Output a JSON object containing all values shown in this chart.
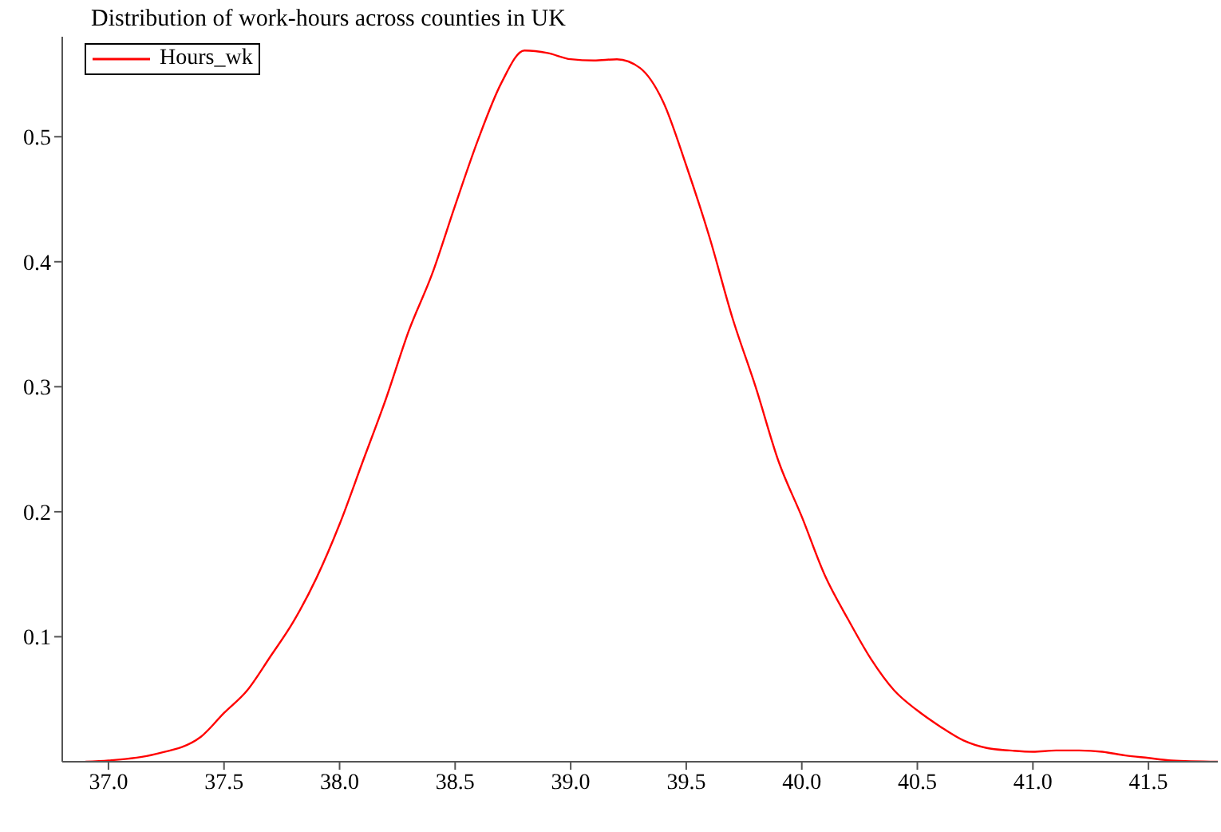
{
  "chart_data": {
    "type": "line",
    "title": "Distribution of work-hours across counties in UK",
    "x": [
      36.9,
      37.0,
      37.2,
      37.4,
      37.5,
      37.6,
      37.7,
      37.8,
      37.9,
      38.0,
      38.1,
      38.2,
      38.3,
      38.4,
      38.5,
      38.6,
      38.7,
      38.8,
      38.9,
      39.0,
      39.1,
      39.2,
      39.3,
      39.4,
      39.5,
      39.6,
      39.7,
      39.8,
      39.9,
      40.0,
      40.1,
      40.2,
      40.3,
      40.4,
      40.5,
      40.6,
      40.7,
      40.8,
      40.9,
      41.0,
      41.1,
      41.2,
      41.3,
      41.4,
      41.5,
      41.6,
      41.8
    ],
    "series": [
      {
        "name": "Hours_wk",
        "color": "#ff0000",
        "values": [
          0,
          0.001,
          0.006,
          0.02,
          0.039,
          0.057,
          0.084,
          0.112,
          0.147,
          0.19,
          0.24,
          0.29,
          0.345,
          0.39,
          0.445,
          0.498,
          0.543,
          0.569,
          0.567,
          0.562,
          0.561,
          0.562,
          0.555,
          0.528,
          0.477,
          0.42,
          0.355,
          0.3,
          0.24,
          0.196,
          0.149,
          0.114,
          0.082,
          0.057,
          0.041,
          0.028,
          0.017,
          0.011,
          0.009,
          0.008,
          0.009,
          0.009,
          0.008,
          0.005,
          0.003,
          0.001,
          0
        ]
      }
    ],
    "xlim": [
      36.8,
      41.8
    ],
    "xticks": [
      {
        "value": 37,
        "label": "37.0"
      },
      37.5,
      {
        "value": 38,
        "label": "38.0"
      },
      38.5,
      {
        "value": 39,
        "label": "39.0"
      },
      39.5,
      {
        "value": 40,
        "label": "40.0"
      },
      40.5,
      {
        "value": 41,
        "label": "41.0"
      },
      41.5
    ],
    "ylim": [
      0,
      0.58
    ],
    "yticks": [
      0.1,
      0.2,
      0.3,
      0.4,
      0.5
    ],
    "grid": false,
    "legend": "top left",
    "marker": "none",
    "line_style": "solid"
  }
}
